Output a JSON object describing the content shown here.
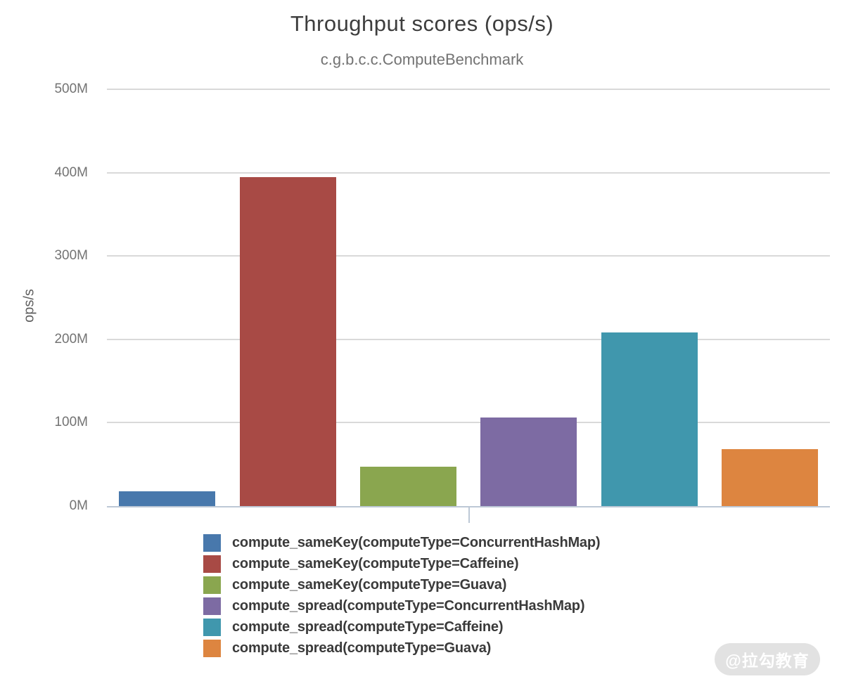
{
  "chart_data": {
    "type": "bar",
    "title": "Throughput scores (ops/s)",
    "subtitle": "c.g.b.c.c.ComputeBenchmark",
    "ylabel": "ops/s",
    "ylim_m": [
      0,
      500
    ],
    "y_ticks": [
      {
        "value_m": 0,
        "label": "0M"
      },
      {
        "value_m": 100,
        "label": "100M"
      },
      {
        "value_m": 200,
        "label": "200M"
      },
      {
        "value_m": 300,
        "label": "300M"
      },
      {
        "value_m": 400,
        "label": "400M"
      },
      {
        "value_m": 500,
        "label": "500M"
      }
    ],
    "grid": true,
    "legend_position": "bottom",
    "series": [
      {
        "name": "compute_sameKey(computeType=ConcurrentHashMap)",
        "value_m": 18,
        "color": "#4878ac"
      },
      {
        "name": "compute_sameKey(computeType=Caffeine)",
        "value_m": 395,
        "color": "#a84a45"
      },
      {
        "name": "compute_sameKey(computeType=Guava)",
        "value_m": 47,
        "color": "#8aa64f"
      },
      {
        "name": "compute_spread(computeType=ConcurrentHashMap)",
        "value_m": 106,
        "color": "#7d6ba3"
      },
      {
        "name": "compute_spread(computeType=Caffeine)",
        "value_m": 208,
        "color": "#4097ad"
      },
      {
        "name": "compute_spread(computeType=Guava)",
        "value_m": 68,
        "color": "#dd8540"
      }
    ]
  },
  "watermark": {
    "text": "@拉勾教育"
  }
}
